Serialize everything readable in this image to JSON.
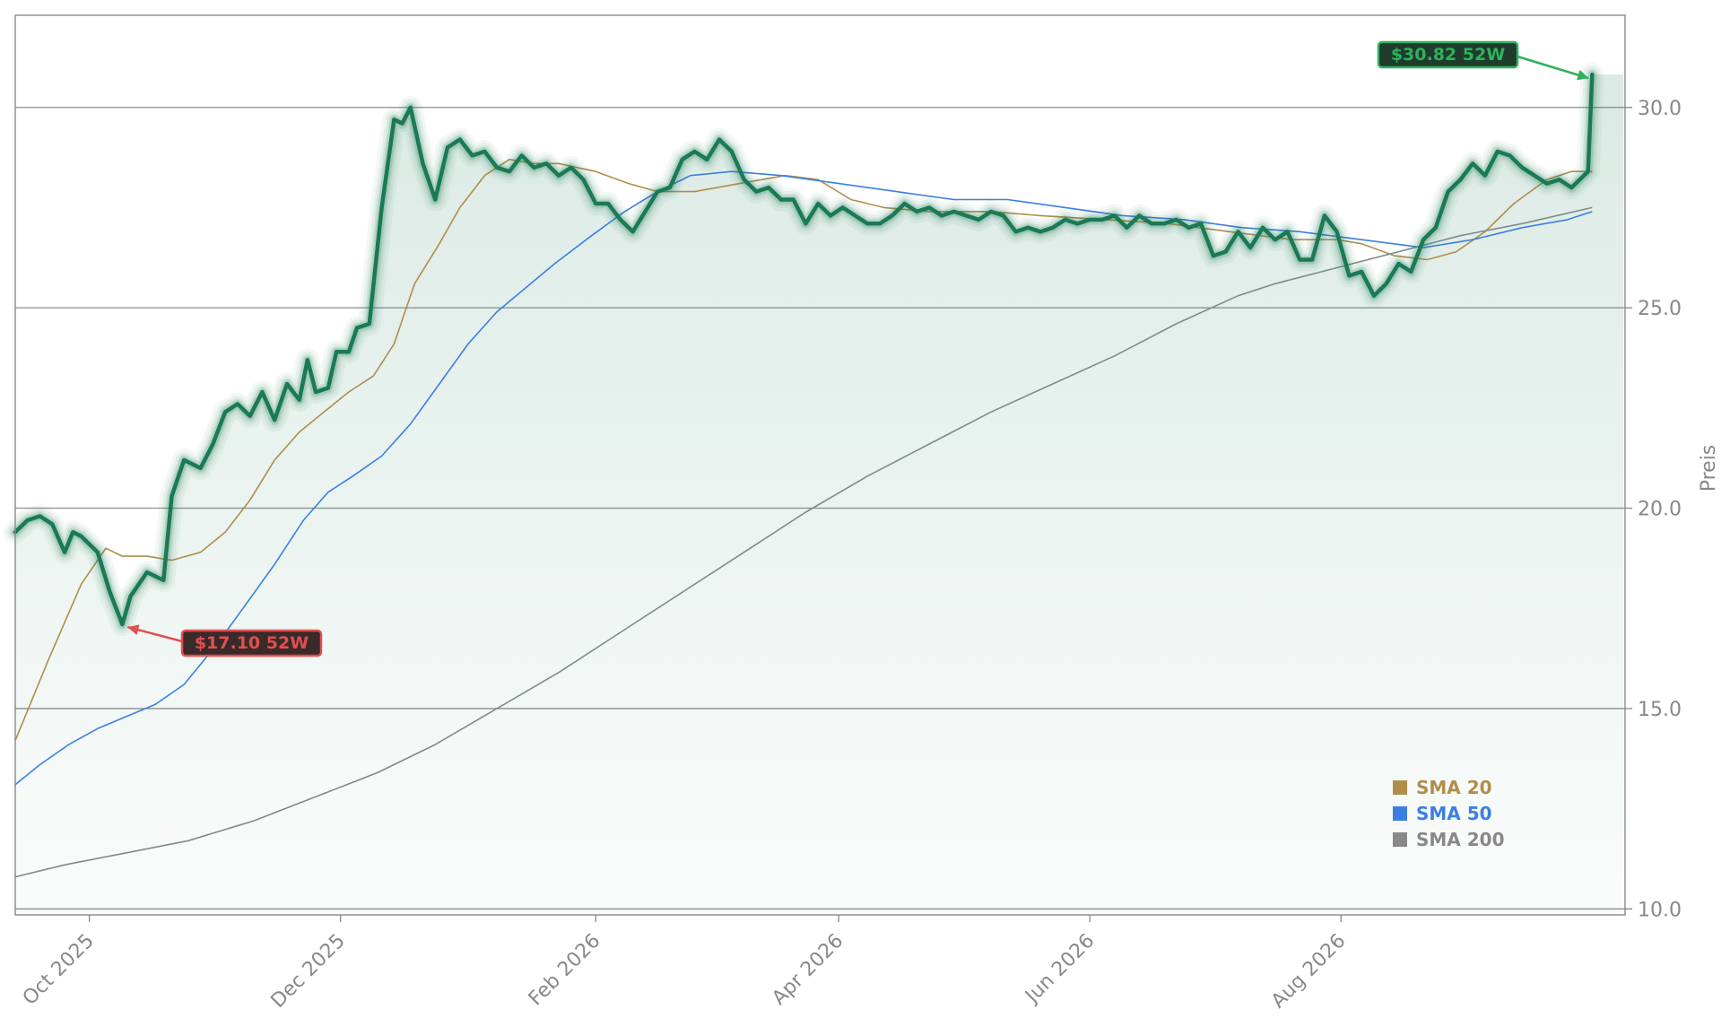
{
  "chart_data": {
    "type": "line",
    "title": "",
    "xlabel": "",
    "ylabel": "Preis",
    "ylim": [
      9.85,
      32.3
    ],
    "yticks": [
      10.0,
      15.0,
      20.0,
      25.0,
      30.0
    ],
    "ytick_labels": [
      "10.0",
      "15.0",
      "20.0",
      "25.0",
      "30.0"
    ],
    "grid": "horizontal",
    "x_start": "2025-09-13",
    "x_end": "2026-10-09",
    "xticks": [
      "2025-10-01",
      "2025-12-01",
      "2026-02-01",
      "2026-04-01",
      "2026-06-01",
      "2026-08-01"
    ],
    "xtick_labels": [
      "Oct 2025",
      "Dec 2025",
      "Feb 2026",
      "Apr 2026",
      "Jun 2026",
      "Aug 2026"
    ],
    "price": {
      "name": "Price",
      "color": "#1a7a55",
      "points": [
        [
          "2025-09-13",
          19.4
        ],
        [
          "2025-09-16",
          19.7
        ],
        [
          "2025-09-19",
          19.8
        ],
        [
          "2025-09-22",
          19.6
        ],
        [
          "2025-09-25",
          18.9
        ],
        [
          "2025-09-27",
          19.4
        ],
        [
          "2025-09-29",
          19.3
        ],
        [
          "2025-10-03",
          18.9
        ],
        [
          "2025-10-06",
          17.9
        ],
        [
          "2025-10-09",
          17.1
        ],
        [
          "2025-10-11",
          17.8
        ],
        [
          "2025-10-15",
          18.4
        ],
        [
          "2025-10-19",
          18.2
        ],
        [
          "2025-10-21",
          20.3
        ],
        [
          "2025-10-24",
          21.2
        ],
        [
          "2025-10-28",
          21.0
        ],
        [
          "2025-10-31",
          21.6
        ],
        [
          "2025-11-03",
          22.4
        ],
        [
          "2025-11-06",
          22.6
        ],
        [
          "2025-11-09",
          22.3
        ],
        [
          "2025-11-12",
          22.9
        ],
        [
          "2025-11-15",
          22.2
        ],
        [
          "2025-11-18",
          23.1
        ],
        [
          "2025-11-21",
          22.7
        ],
        [
          "2025-11-23",
          23.7
        ],
        [
          "2025-11-25",
          22.9
        ],
        [
          "2025-11-28",
          23.0
        ],
        [
          "2025-11-30",
          23.9
        ],
        [
          "2025-12-03",
          23.9
        ],
        [
          "2025-12-05",
          24.5
        ],
        [
          "2025-12-08",
          24.6
        ],
        [
          "2025-12-11",
          27.5
        ],
        [
          "2025-12-14",
          29.7
        ],
        [
          "2025-12-16",
          29.6
        ],
        [
          "2025-12-18",
          30.0
        ],
        [
          "2025-12-21",
          28.6
        ],
        [
          "2025-12-24",
          27.7
        ],
        [
          "2025-12-27",
          29.0
        ],
        [
          "2025-12-30",
          29.2
        ],
        [
          "2026-01-02",
          28.8
        ],
        [
          "2026-01-05",
          28.9
        ],
        [
          "2026-01-08",
          28.5
        ],
        [
          "2026-01-11",
          28.4
        ],
        [
          "2026-01-14",
          28.8
        ],
        [
          "2026-01-17",
          28.5
        ],
        [
          "2026-01-20",
          28.6
        ],
        [
          "2026-01-23",
          28.3
        ],
        [
          "2026-01-26",
          28.5
        ],
        [
          "2026-01-29",
          28.2
        ],
        [
          "2026-02-01",
          27.6
        ],
        [
          "2026-02-04",
          27.6
        ],
        [
          "2026-02-07",
          27.2
        ],
        [
          "2026-02-10",
          26.9
        ],
        [
          "2026-02-13",
          27.4
        ],
        [
          "2026-02-16",
          27.9
        ],
        [
          "2026-02-19",
          28.0
        ],
        [
          "2026-02-22",
          28.7
        ],
        [
          "2026-02-25",
          28.9
        ],
        [
          "2026-02-28",
          28.7
        ],
        [
          "2026-03-03",
          29.2
        ],
        [
          "2026-03-06",
          28.9
        ],
        [
          "2026-03-09",
          28.2
        ],
        [
          "2026-03-12",
          27.9
        ],
        [
          "2026-03-15",
          28.0
        ],
        [
          "2026-03-18",
          27.7
        ],
        [
          "2026-03-21",
          27.7
        ],
        [
          "2026-03-24",
          27.1
        ],
        [
          "2026-03-27",
          27.6
        ],
        [
          "2026-03-30",
          27.3
        ],
        [
          "2026-04-02",
          27.5
        ],
        [
          "2026-04-05",
          27.3
        ],
        [
          "2026-04-08",
          27.1
        ],
        [
          "2026-04-11",
          27.1
        ],
        [
          "2026-04-14",
          27.3
        ],
        [
          "2026-04-17",
          27.6
        ],
        [
          "2026-04-20",
          27.4
        ],
        [
          "2026-04-23",
          27.5
        ],
        [
          "2026-04-26",
          27.3
        ],
        [
          "2026-04-29",
          27.4
        ],
        [
          "2026-05-02",
          27.3
        ],
        [
          "2026-05-05",
          27.2
        ],
        [
          "2026-05-08",
          27.4
        ],
        [
          "2026-05-11",
          27.3
        ],
        [
          "2026-05-14",
          26.9
        ],
        [
          "2026-05-17",
          27.0
        ],
        [
          "2026-05-20",
          26.9
        ],
        [
          "2026-05-23",
          27.0
        ],
        [
          "2026-05-26",
          27.2
        ],
        [
          "2026-05-29",
          27.1
        ],
        [
          "2026-06-01",
          27.2
        ],
        [
          "2026-06-04",
          27.2
        ],
        [
          "2026-06-07",
          27.3
        ],
        [
          "2026-06-10",
          27.0
        ],
        [
          "2026-06-13",
          27.3
        ],
        [
          "2026-06-16",
          27.1
        ],
        [
          "2026-06-19",
          27.1
        ],
        [
          "2026-06-22",
          27.2
        ],
        [
          "2026-06-25",
          27.0
        ],
        [
          "2026-06-28",
          27.1
        ],
        [
          "2026-07-01",
          26.3
        ],
        [
          "2026-07-04",
          26.4
        ],
        [
          "2026-07-07",
          26.9
        ],
        [
          "2026-07-10",
          26.5
        ],
        [
          "2026-07-13",
          27.0
        ],
        [
          "2026-07-16",
          26.7
        ],
        [
          "2026-07-19",
          26.9
        ],
        [
          "2026-07-22",
          26.2
        ],
        [
          "2026-07-25",
          26.2
        ],
        [
          "2026-07-28",
          27.3
        ],
        [
          "2026-07-31",
          26.9
        ],
        [
          "2026-08-03",
          25.8
        ],
        [
          "2026-08-06",
          25.9
        ],
        [
          "2026-08-09",
          25.3
        ],
        [
          "2026-08-12",
          25.6
        ],
        [
          "2026-08-15",
          26.1
        ],
        [
          "2026-08-18",
          25.9
        ],
        [
          "2026-08-21",
          26.7
        ],
        [
          "2026-08-24",
          27.0
        ],
        [
          "2026-08-27",
          27.9
        ],
        [
          "2026-08-30",
          28.2
        ],
        [
          "2026-09-02",
          28.6
        ],
        [
          "2026-09-05",
          28.3
        ],
        [
          "2026-09-08",
          28.9
        ],
        [
          "2026-09-11",
          28.8
        ],
        [
          "2026-09-14",
          28.5
        ],
        [
          "2026-09-17",
          28.3
        ],
        [
          "2026-09-20",
          28.1
        ],
        [
          "2026-09-23",
          28.2
        ],
        [
          "2026-09-26",
          28.0
        ],
        [
          "2026-09-30",
          28.4
        ],
        [
          "2026-10-01",
          30.82
        ]
      ]
    },
    "series": [
      {
        "name": "SMA 20",
        "color": "#b08e4a",
        "points": [
          [
            "2025-09-13",
            14.2
          ],
          [
            "2025-09-21",
            16.2
          ],
          [
            "2025-09-29",
            18.1
          ],
          [
            "2025-10-05",
            19.0
          ],
          [
            "2025-10-09",
            18.8
          ],
          [
            "2025-10-15",
            18.8
          ],
          [
            "2025-10-21",
            18.7
          ],
          [
            "2025-10-28",
            18.9
          ],
          [
            "2025-11-03",
            19.4
          ],
          [
            "2025-11-09",
            20.2
          ],
          [
            "2025-11-15",
            21.2
          ],
          [
            "2025-11-21",
            21.9
          ],
          [
            "2025-11-27",
            22.4
          ],
          [
            "2025-12-03",
            22.9
          ],
          [
            "2025-12-09",
            23.3
          ],
          [
            "2025-12-14",
            24.1
          ],
          [
            "2025-12-19",
            25.6
          ],
          [
            "2025-12-25",
            26.6
          ],
          [
            "2025-12-30",
            27.5
          ],
          [
            "2026-01-05",
            28.3
          ],
          [
            "2026-01-11",
            28.7
          ],
          [
            "2026-01-17",
            28.6
          ],
          [
            "2026-01-23",
            28.6
          ],
          [
            "2026-02-01",
            28.4
          ],
          [
            "2026-02-09",
            28.1
          ],
          [
            "2026-02-16",
            27.9
          ],
          [
            "2026-02-25",
            27.9
          ],
          [
            "2026-03-08",
            28.1
          ],
          [
            "2026-03-19",
            28.3
          ],
          [
            "2026-03-27",
            28.2
          ],
          [
            "2026-04-04",
            27.7
          ],
          [
            "2026-04-12",
            27.5
          ],
          [
            "2026-04-23",
            27.4
          ],
          [
            "2026-05-08",
            27.4
          ],
          [
            "2026-05-20",
            27.3
          ],
          [
            "2026-06-05",
            27.2
          ],
          [
            "2026-06-20",
            27.1
          ],
          [
            "2026-07-05",
            26.9
          ],
          [
            "2026-07-20",
            26.7
          ],
          [
            "2026-07-31",
            26.7
          ],
          [
            "2026-08-06",
            26.6
          ],
          [
            "2026-08-14",
            26.3
          ],
          [
            "2026-08-22",
            26.2
          ],
          [
            "2026-08-29",
            26.4
          ],
          [
            "2026-09-05",
            26.9
          ],
          [
            "2026-09-12",
            27.6
          ],
          [
            "2026-09-20",
            28.2
          ],
          [
            "2026-09-26",
            28.4
          ],
          [
            "2026-10-01",
            28.4
          ]
        ]
      },
      {
        "name": "SMA 50",
        "color": "#3b7fe3",
        "points": [
          [
            "2025-09-13",
            13.1
          ],
          [
            "2025-09-19",
            13.6
          ],
          [
            "2025-09-26",
            14.1
          ],
          [
            "2025-10-03",
            14.5
          ],
          [
            "2025-10-10",
            14.8
          ],
          [
            "2025-10-17",
            15.1
          ],
          [
            "2025-10-24",
            15.6
          ],
          [
            "2025-11-01",
            16.6
          ],
          [
            "2025-11-08",
            17.6
          ],
          [
            "2025-11-15",
            18.6
          ],
          [
            "2025-11-22",
            19.7
          ],
          [
            "2025-11-28",
            20.4
          ],
          [
            "2025-12-04",
            20.8
          ],
          [
            "2025-12-11",
            21.3
          ],
          [
            "2025-12-18",
            22.1
          ],
          [
            "2025-12-25",
            23.1
          ],
          [
            "2026-01-01",
            24.1
          ],
          [
            "2026-01-08",
            24.9
          ],
          [
            "2026-01-15",
            25.5
          ],
          [
            "2026-01-22",
            26.1
          ],
          [
            "2026-01-31",
            26.8
          ],
          [
            "2026-02-08",
            27.4
          ],
          [
            "2026-02-16",
            27.9
          ],
          [
            "2026-02-24",
            28.3
          ],
          [
            "2026-03-06",
            28.4
          ],
          [
            "2026-03-18",
            28.3
          ],
          [
            "2026-04-01",
            28.1
          ],
          [
            "2026-04-15",
            27.9
          ],
          [
            "2026-04-29",
            27.7
          ],
          [
            "2026-05-12",
            27.7
          ],
          [
            "2026-05-26",
            27.5
          ],
          [
            "2026-06-09",
            27.3
          ],
          [
            "2026-06-24",
            27.2
          ],
          [
            "2026-07-08",
            27.0
          ],
          [
            "2026-07-22",
            26.9
          ],
          [
            "2026-08-06",
            26.7
          ],
          [
            "2026-08-21",
            26.5
          ],
          [
            "2026-09-02",
            26.7
          ],
          [
            "2026-09-14",
            27.0
          ],
          [
            "2026-09-25",
            27.2
          ],
          [
            "2026-10-01",
            27.4
          ]
        ]
      },
      {
        "name": "SMA 200",
        "color": "#7d8c88",
        "points": [
          [
            "2025-09-13",
            10.8
          ],
          [
            "2025-09-25",
            11.1
          ],
          [
            "2025-10-10",
            11.4
          ],
          [
            "2025-10-25",
            11.7
          ],
          [
            "2025-11-10",
            12.2
          ],
          [
            "2025-11-25",
            12.8
          ],
          [
            "2025-12-10",
            13.4
          ],
          [
            "2025-12-24",
            14.1
          ],
          [
            "2026-01-08",
            15.0
          ],
          [
            "2026-01-23",
            15.9
          ],
          [
            "2026-02-07",
            16.9
          ],
          [
            "2026-02-22",
            17.9
          ],
          [
            "2026-03-09",
            18.9
          ],
          [
            "2026-03-24",
            19.9
          ],
          [
            "2026-04-08",
            20.8
          ],
          [
            "2026-04-23",
            21.6
          ],
          [
            "2026-05-08",
            22.4
          ],
          [
            "2026-05-23",
            23.1
          ],
          [
            "2026-06-07",
            23.8
          ],
          [
            "2026-06-22",
            24.6
          ],
          [
            "2026-07-07",
            25.3
          ],
          [
            "2026-07-16",
            25.6
          ],
          [
            "2026-07-31",
            26.0
          ],
          [
            "2026-08-15",
            26.4
          ],
          [
            "2026-08-30",
            26.8
          ],
          [
            "2026-09-14",
            27.1
          ],
          [
            "2026-10-01",
            27.5
          ]
        ]
      }
    ],
    "annotations": [
      {
        "text": "$30.82 52W",
        "date": "2026-10-01",
        "value": 30.82,
        "kind": "high",
        "bg": "#1f3b2e",
        "border": "#2fb15a",
        "color": "#2fb15a"
      },
      {
        "text": "$17.10 52W",
        "date": "2025-10-09",
        "value": 17.1,
        "kind": "low",
        "bg": "#3a2a2a",
        "border": "#e05050",
        "color": "#e05050"
      }
    ],
    "legend": {
      "placement": "lower-right",
      "items": [
        {
          "label": "SMA 20",
          "color": "#b08e4a"
        },
        {
          "label": "SMA 50",
          "color": "#3b7fe3"
        },
        {
          "label": "SMA 200",
          "color": "#888888"
        }
      ]
    }
  }
}
